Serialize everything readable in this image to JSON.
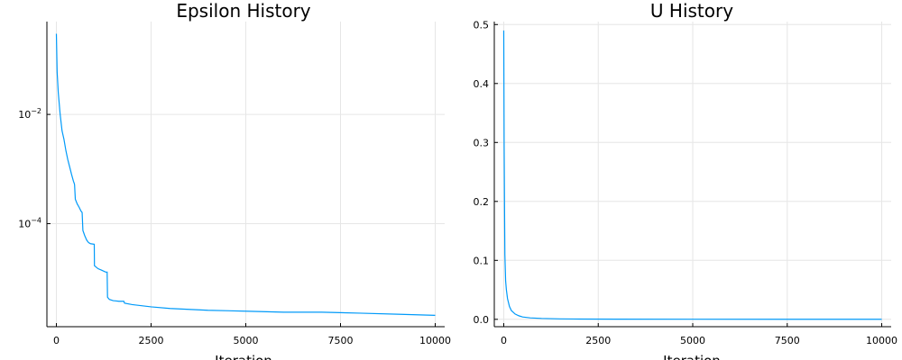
{
  "colors": {
    "series": "#009af9",
    "grid": "#e6e6e6",
    "axis": "#000000",
    "background": "#ffffff"
  },
  "chart_data": [
    {
      "type": "line",
      "title": "Epsilon History",
      "xlabel": "Iteration",
      "ylabel": "",
      "yscale": "log",
      "xlim": [
        -250,
        10250
      ],
      "ylim": [
        1.3e-06,
        0.5
      ],
      "grid": true,
      "legend": "none",
      "x_ticks": [
        {
          "value": 0,
          "label": "0"
        },
        {
          "value": 2500,
          "label": "2500"
        },
        {
          "value": 5000,
          "label": "5000"
        },
        {
          "value": 7500,
          "label": "7500"
        },
        {
          "value": 10000,
          "label": "10000"
        }
      ],
      "y_ticks": [
        {
          "value": 0.01,
          "base": "10",
          "exponent": "−2"
        },
        {
          "value": 0.0001,
          "base": "10",
          "exponent": "−4"
        }
      ],
      "series": [
        {
          "name": "epsilon",
          "x": [
            0,
            20,
            50,
            100,
            150,
            200,
            250,
            300,
            350,
            400,
            450,
            470,
            480,
            500,
            550,
            600,
            650,
            680,
            700,
            750,
            800,
            850,
            900,
            1000,
            1005,
            1100,
            1200,
            1300,
            1340,
            1350,
            1400,
            1500,
            1650,
            1780,
            1800,
            2000,
            2500,
            3000,
            3500,
            4000,
            5000,
            6000,
            7000,
            8000,
            9000,
            10000
          ],
          "y": [
            0.3,
            0.06,
            0.025,
            0.01,
            0.005,
            0.0035,
            0.0022,
            0.0015,
            0.0011,
            0.0008,
            0.0006,
            0.00055,
            0.00052,
            0.00028,
            0.00023,
            0.0002,
            0.00017,
            0.00016,
            7.5e-05,
            6e-05,
            5e-05,
            4.5e-05,
            4.3e-05,
            4.2e-05,
            1.7e-05,
            1.5e-05,
            1.4e-05,
            1.3e-05,
            1.3e-05,
            4.5e-06,
            4.1e-06,
            3.9e-06,
            3.8e-06,
            3.8e-06,
            3.5e-06,
            3.3e-06,
            3e-06,
            2.8e-06,
            2.7e-06,
            2.6e-06,
            2.5e-06,
            2.4e-06,
            2.4e-06,
            2.3e-06,
            2.2e-06,
            2.1e-06
          ]
        }
      ]
    },
    {
      "type": "line",
      "title": "U History",
      "xlabel": "Iteration",
      "ylabel": "",
      "yscale": "linear",
      "xlim": [
        -250,
        10250
      ],
      "ylim": [
        -0.0125,
        0.505
      ],
      "grid": true,
      "legend": "none",
      "x_ticks": [
        {
          "value": 0,
          "label": "0"
        },
        {
          "value": 2500,
          "label": "2500"
        },
        {
          "value": 5000,
          "label": "5000"
        },
        {
          "value": 7500,
          "label": "7500"
        },
        {
          "value": 10000,
          "label": "10000"
        }
      ],
      "y_ticks": [
        {
          "value": 0.0,
          "label": "0.0"
        },
        {
          "value": 0.1,
          "label": "0.1"
        },
        {
          "value": 0.2,
          "label": "0.2"
        },
        {
          "value": 0.3,
          "label": "0.3"
        },
        {
          "value": 0.4,
          "label": "0.4"
        },
        {
          "value": 0.5,
          "label": "0.5"
        }
      ],
      "series": [
        {
          "name": "u",
          "x": [
            0,
            10,
            20,
            30,
            50,
            70,
            100,
            150,
            200,
            300,
            400,
            500,
            700,
            1000,
            1500,
            2000,
            3000,
            5000,
            7500,
            10000
          ],
          "y": [
            0.49,
            0.3,
            0.2,
            0.11,
            0.065,
            0.05,
            0.035,
            0.022,
            0.015,
            0.009,
            0.006,
            0.004,
            0.0025,
            0.0015,
            0.0008,
            0.0005,
            0.0003,
            0.0002,
            0.0001,
            0.0001
          ]
        }
      ]
    }
  ]
}
